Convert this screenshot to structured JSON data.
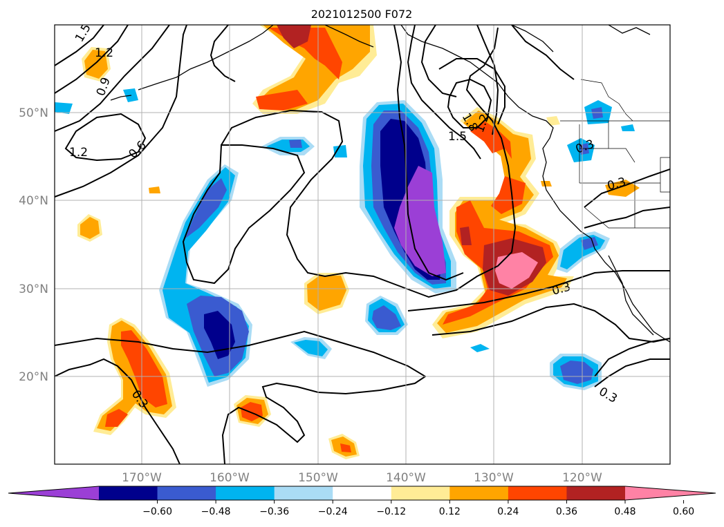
{
  "map": {
    "title": "2021012500 F072",
    "lat_labels": [
      "50°N",
      "40°N",
      "30°N",
      "20°N"
    ],
    "lon_labels": [
      "170°W",
      "160°W",
      "150°W",
      "140°W",
      "130°W",
      "120°W"
    ],
    "extent": {
      "lon_min": -180,
      "lon_max": -110,
      "lat_min": 10,
      "lat_max": 60
    },
    "contour_labels": [
      "1.5",
      "1.2",
      "0.9",
      "1.2",
      "0.6",
      "1.5",
      "1.8",
      "1.2",
      "0.3",
      "0.3",
      "0.3",
      "0.3",
      "0.3"
    ]
  },
  "colorbar": {
    "ticks": [
      "−0.60",
      "−0.48",
      "−0.36",
      "−0.24",
      "−0.12",
      "0.12",
      "0.24",
      "0.36",
      "0.48",
      "0.60"
    ],
    "colors": [
      "#9b3fd6",
      "#00008c",
      "#3a5bd0",
      "#00b4f0",
      "#aadcf5",
      "#ffffff",
      "#ffec96",
      "#ffa500",
      "#ff4500",
      "#b22222",
      "#ff82a5"
    ]
  }
}
